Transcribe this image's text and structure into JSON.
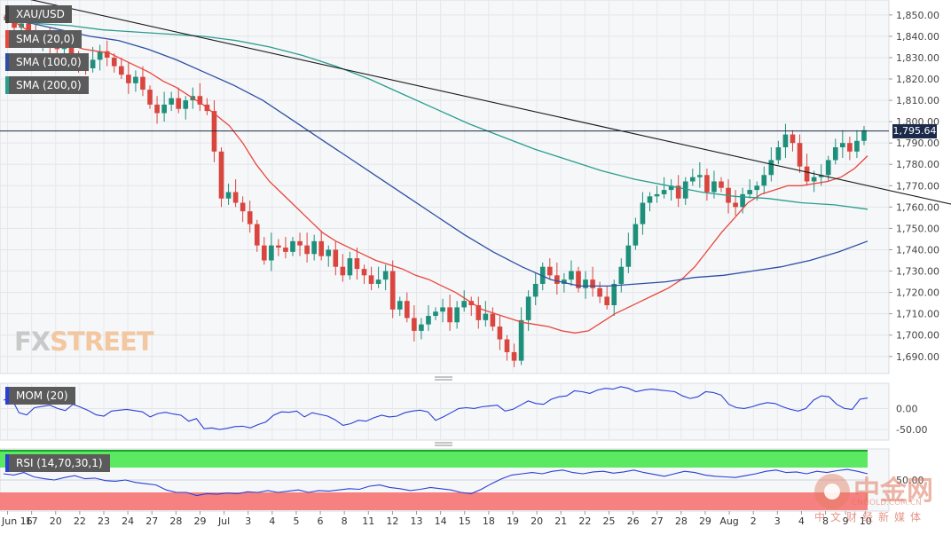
{
  "labels": {
    "symbol": "XAU/USD",
    "sma20": "SMA (20,0)",
    "sma100": "SMA (100,0)",
    "sma200": "SMA (200,0)",
    "mom": "MOM (20)",
    "rsi": "RSI (14,70,30,1)"
  },
  "last_price": "1,795.64",
  "colors": {
    "sma20": "#e8473c",
    "sma100": "#2c4fa3",
    "sma200": "#2a9d8f",
    "bull": "#1e8f7a",
    "bear": "#d9453f",
    "trendline": "#1a1a1a",
    "indicator": "#2a3fd6"
  },
  "watermark": {
    "brand": "FXSTREET",
    "cn_name": "中金网",
    "cn_sub": "中文财经新媒体",
    "cn_url": "CNGOLD.COM.CN"
  },
  "chart_data": [
    {
      "type": "candlestick",
      "title": "XAU/USD",
      "y_ticks": [
        "1,850.00",
        "1,840.00",
        "1,830.00",
        "1,820.00",
        "1,810.00",
        "1,800.00",
        "1,790.00",
        "1,780.00",
        "1,770.00",
        "1,760.00",
        "1,750.00",
        "1,740.00",
        "1,730.00",
        "1,720.00",
        "1,710.00",
        "1,700.00",
        "1,690.00"
      ],
      "y_tick_values": [
        1850,
        1840,
        1830,
        1820,
        1810,
        1800,
        1790,
        1780,
        1770,
        1760,
        1750,
        1740,
        1730,
        1720,
        1710,
        1700,
        1690
      ],
      "ylim": [
        1682,
        1857
      ],
      "x_ticks": [
        "Jun 16",
        "17",
        "20",
        "22",
        "23",
        "24",
        "27",
        "28",
        "29",
        "Jul",
        "3",
        "4",
        "5",
        "6",
        "8",
        "11",
        "12",
        "13",
        "14",
        "15",
        "18",
        "19",
        "20",
        "21",
        "22",
        "25",
        "26",
        "27",
        "28",
        "29",
        "Aug",
        "2",
        "3",
        "4",
        "8",
        "9",
        "10"
      ],
      "x_tick_index": [
        2,
        14,
        26,
        38,
        50,
        62,
        74,
        86,
        98,
        110,
        122,
        134,
        146,
        158,
        170,
        182,
        194,
        206,
        218,
        230,
        242,
        254,
        266,
        278,
        290,
        302,
        314,
        326,
        338,
        350,
        362,
        374,
        386,
        398,
        410,
        420,
        430
      ],
      "closes": [
        1848,
        1844,
        1846,
        1842,
        1838,
        1840,
        1836,
        1834,
        1837,
        1831,
        1827,
        1825,
        1829,
        1833,
        1830,
        1826,
        1822,
        1818,
        1821,
        1815,
        1808,
        1804,
        1808,
        1811,
        1806,
        1810,
        1812,
        1808,
        1805,
        1786,
        1764,
        1767,
        1762,
        1758,
        1752,
        1742,
        1735,
        1742,
        1741,
        1739,
        1744,
        1742,
        1738,
        1744,
        1737,
        1740,
        1732,
        1728,
        1736,
        1731,
        1728,
        1724,
        1726,
        1730,
        1712,
        1716,
        1708,
        1702,
        1705,
        1709,
        1711,
        1713,
        1706,
        1713,
        1716,
        1714,
        1707,
        1710,
        1704,
        1698,
        1692,
        1688,
        1707,
        1718,
        1724,
        1732,
        1728,
        1724,
        1726,
        1730,
        1722,
        1726,
        1722,
        1718,
        1714,
        1724,
        1732,
        1742,
        1752,
        1762,
        1765,
        1766,
        1768,
        1770,
        1764,
        1772,
        1774,
        1775,
        1767,
        1772,
        1769,
        1762,
        1760,
        1766,
        1768,
        1770,
        1775,
        1782,
        1788,
        1794,
        1790,
        1779,
        1772,
        1774,
        1775,
        1782,
        1788,
        1790,
        1786,
        1791,
        1796
      ],
      "series": [
        {
          "name": "SMA (20,0)",
          "values": [
            1849,
            1846,
            1842,
            1839,
            1837,
            1836,
            1834,
            1833,
            1832,
            1829,
            1826,
            1823,
            1819,
            1816,
            1812,
            1808,
            1803,
            1798,
            1790,
            1780,
            1772,
            1766,
            1760,
            1754,
            1748,
            1744,
            1741,
            1738,
            1735,
            1733,
            1731,
            1728,
            1726,
            1723,
            1720,
            1716,
            1712,
            1710,
            1708,
            1706,
            1705,
            1704,
            1702,
            1701,
            1702,
            1706,
            1710,
            1713,
            1716,
            1719,
            1722,
            1726,
            1732,
            1740,
            1748,
            1755,
            1762,
            1766,
            1768,
            1770,
            1770,
            1771,
            1772,
            1774,
            1778,
            1784
          ]
        },
        {
          "name": "SMA (100,0)",
          "values": [
            1848,
            1846,
            1843,
            1840,
            1838,
            1834,
            1829,
            1823,
            1817,
            1810,
            1801,
            1792,
            1783,
            1774,
            1765,
            1756,
            1747,
            1739,
            1732,
            1726,
            1723,
            1723,
            1724,
            1725,
            1727,
            1728,
            1730,
            1732,
            1735,
            1739,
            1744
          ]
        },
        {
          "name": "SMA (200,0)",
          "values": [
            1848,
            1846,
            1845,
            1843,
            1842,
            1841,
            1840,
            1838,
            1835,
            1831,
            1826,
            1820,
            1813,
            1806,
            1799,
            1793,
            1787,
            1782,
            1777,
            1773,
            1770,
            1767,
            1765,
            1764,
            1762,
            1761,
            1759
          ]
        }
      ],
      "trendline": {
        "x": [
          0,
          475
        ],
        "y": [
          1860,
          1759
        ]
      }
    },
    {
      "type": "line",
      "title": "MOM (20)",
      "y_ticks": [
        "0.00",
        "-50.00"
      ],
      "y_tick_values": [
        0,
        -50
      ],
      "ylim": [
        -75,
        60
      ],
      "values": [
        20,
        25,
        -10,
        -15,
        2,
        5,
        8,
        0,
        -5,
        10,
        3,
        -5,
        -15,
        -18,
        -6,
        -4,
        -2,
        -5,
        -8,
        -20,
        -12,
        -9,
        -13,
        -16,
        -30,
        -24,
        -48,
        -46,
        -50,
        -47,
        -43,
        -42,
        -46,
        -38,
        -32,
        -16,
        -8,
        -9,
        -6,
        -20,
        -10,
        -14,
        -18,
        -27,
        -40,
        -36,
        -28,
        -30,
        -22,
        -16,
        -20,
        -18,
        -10,
        -6,
        -4,
        -8,
        -28,
        -20,
        -10,
        0,
        2,
        0,
        4,
        6,
        8,
        -6,
        -2,
        8,
        18,
        12,
        10,
        22,
        28,
        30,
        42,
        40,
        36,
        44,
        48,
        46,
        52,
        48,
        40,
        44,
        46,
        44,
        42,
        40,
        30,
        24,
        28,
        40,
        38,
        32,
        10,
        2,
        0,
        4,
        10,
        14,
        12,
        4,
        -2,
        -6,
        0,
        20,
        30,
        28,
        10,
        0,
        -2,
        22,
        25
      ]
    },
    {
      "type": "line",
      "title": "RSI (14,70,30,1)",
      "y_ticks": [
        "50.00"
      ],
      "y_tick_values": [
        50
      ],
      "ylim": [
        0,
        100
      ],
      "bands": {
        "overbought": 70,
        "oversold": 30
      },
      "values": [
        60,
        58,
        62,
        55,
        52,
        50,
        54,
        57,
        52,
        53,
        49,
        48,
        50,
        46,
        44,
        42,
        34,
        30,
        30,
        25,
        28,
        27,
        29,
        28,
        31,
        30,
        33,
        30,
        32,
        34,
        30,
        33,
        32,
        34,
        36,
        35,
        40,
        42,
        38,
        36,
        33,
        35,
        38,
        36,
        34,
        30,
        28,
        35,
        44,
        52,
        58,
        60,
        62,
        60,
        64,
        66,
        62,
        60,
        63,
        64,
        61,
        63,
        66,
        62,
        59,
        56,
        60,
        64,
        62,
        58,
        56,
        55,
        54,
        57,
        60,
        64,
        66,
        62,
        63,
        60,
        64,
        62,
        65,
        67,
        64,
        60
      ]
    }
  ]
}
